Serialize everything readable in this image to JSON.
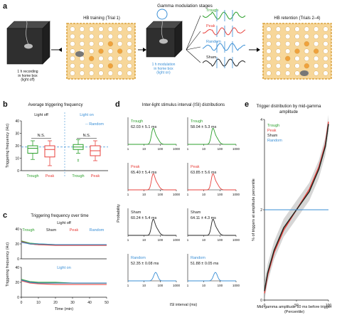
{
  "panel_a": {
    "letter": "a",
    "top_title": "Gamma modulation stages",
    "box1_caption": "1 h recording\nin home box\n(light off)",
    "box2_title": "HB training (Trial 1)",
    "box3_caption": "1 h modulation\nin home box\n(light on)",
    "box4_title": "HB retention (Trials 2–4)",
    "stage_labels": [
      "Trough",
      "Peak",
      "Random",
      "Sham"
    ]
  },
  "colors": {
    "trough": "#2ca02c",
    "peak": "#e8413c",
    "sham": "#222222",
    "random": "#3a8fd6",
    "maze_bg": "#f7d79a",
    "maze_border": "#d9a13a",
    "hole_orange": "#f0a23c"
  },
  "chart_data": [
    {
      "panel": "b",
      "type": "box",
      "title": "Average triggering frequency",
      "ylabel": "Triggering frequency (Hz)",
      "ylim": [
        0,
        40
      ],
      "yticks": [
        0,
        10,
        20,
        30,
        40
      ],
      "groups": [
        {
          "condition": "Light off",
          "categories": [
            "Trough",
            "Peak"
          ],
          "annotation": "N.S.",
          "boxes": [
            {
              "min": 9,
              "q1": 14,
              "median": 18,
              "q3": 20,
              "max": 24
            },
            {
              "min": 4,
              "q1": 11,
              "median": 17,
              "q3": 20,
              "max": 24
            }
          ]
        },
        {
          "condition": "Light on",
          "categories": [
            "Trough",
            "Peak"
          ],
          "annotation": "N.S.",
          "boxes": [
            {
              "min": 14,
              "q1": 17,
              "median": 19,
              "q3": 21,
              "max": 25,
              "outliers": [
                8,
                9
              ]
            },
            {
              "min": 8,
              "q1": 12,
              "median": 16,
              "q3": 20,
              "max": 24
            }
          ]
        }
      ],
      "reference": {
        "name": "Random",
        "value": 19
      }
    },
    {
      "panel": "c",
      "type": "line",
      "title": "Triggering frequency over time",
      "xlabel": "Time (min)",
      "ylabel": "Triggering frequency (Hz)",
      "xlim": [
        0,
        50
      ],
      "ylim": [
        0,
        40
      ],
      "xticks": [
        0,
        10,
        20,
        30,
        40,
        50
      ],
      "yticks": [
        0,
        20,
        40
      ],
      "legend": [
        "Trough",
        "Sham",
        "Peak",
        "Random"
      ],
      "subplots": [
        {
          "label": "Light off",
          "series": [
            {
              "name": "Trough",
              "x": [
                0,
                5,
                10,
                20,
                30,
                40,
                50
              ],
              "y": [
                24,
                21,
                20,
                19,
                19,
                19,
                19
              ]
            },
            {
              "name": "Sham",
              "x": [
                0,
                5,
                10,
                20,
                30,
                40,
                50
              ],
              "y": [
                23,
                20,
                19,
                19,
                19,
                19,
                19
              ]
            },
            {
              "name": "Peak",
              "x": [
                0,
                5,
                10,
                20,
                30,
                40,
                50
              ],
              "y": [
                23,
                20,
                19,
                18,
                18,
                18,
                18
              ]
            },
            {
              "name": "Random",
              "x": [
                0,
                5,
                10,
                20,
                30,
                40,
                50
              ],
              "y": [
                22,
                20,
                20,
                19,
                19,
                19,
                19
              ]
            }
          ]
        },
        {
          "label": "Light on",
          "series": [
            {
              "name": "Trough",
              "x": [
                0,
                5,
                10,
                20,
                30,
                40,
                50
              ],
              "y": [
                24,
                21,
                20,
                20,
                19,
                19,
                19
              ]
            },
            {
              "name": "Sham",
              "x": [
                0,
                5,
                10,
                20,
                30,
                40,
                50
              ],
              "y": [
                23,
                20,
                19,
                19,
                19,
                19,
                19
              ]
            },
            {
              "name": "Peak",
              "x": [
                0,
                5,
                10,
                20,
                30,
                40,
                50
              ],
              "y": [
                22,
                19,
                18,
                17,
                17,
                17,
                17
              ]
            },
            {
              "name": "Random",
              "x": [
                0,
                5,
                10,
                20,
                30,
                40,
                50
              ],
              "y": [
                23,
                20,
                19,
                19,
                19,
                19,
                19
              ]
            }
          ]
        }
      ]
    },
    {
      "panel": "d",
      "type": "line",
      "title": "Inter-light stimulus interval (ISI) distributions",
      "xlabel": "ISI interval (ms)",
      "ylabel": "Probability",
      "xscale": "log",
      "xlim": [
        1,
        1000
      ],
      "xticks": [
        1,
        10,
        100,
        1000
      ],
      "columns": [
        "Light off",
        "Light on"
      ],
      "rows": [
        {
          "name": "Trough",
          "stats": [
            "62.03 ± 5.1 ms",
            "58.04 ± 5.3 ms"
          ]
        },
        {
          "name": "Peak",
          "stats": [
            "65.40 ± 5.4 ms",
            "63.85 ± 5.6 ms"
          ]
        },
        {
          "name": "Sham",
          "stats": [
            "60.24 ± 5.4 ms",
            "64.11 ± 4.3 ms"
          ]
        },
        {
          "name": "Random",
          "stats": [
            "52.35 ± 0.08 ms",
            "51.88 ± 0.05 ms"
          ]
        }
      ]
    },
    {
      "panel": "e",
      "type": "line",
      "title": "Trigger distribution by mid-gamma amplitude",
      "xlabel": "Mid-gamma amplitude 10 ms before trigger (Percentile)",
      "ylabel": "% of triggers at amplitude percentile",
      "xlim": [
        0,
        100
      ],
      "ylim": [
        0,
        4
      ],
      "xticks": [
        0,
        50,
        100
      ],
      "yticks": [
        0,
        2,
        4
      ],
      "legend": [
        "Trough",
        "Peak",
        "Sham",
        "Random"
      ],
      "series": [
        {
          "name": "Trough",
          "x": [
            0,
            5,
            15,
            30,
            50,
            70,
            85,
            95,
            100
          ],
          "y": [
            0.2,
            0.6,
            1.1,
            1.6,
            2.0,
            2.4,
            2.9,
            3.4,
            3.9
          ]
        },
        {
          "name": "Peak",
          "x": [
            0,
            5,
            15,
            30,
            50,
            70,
            85,
            95,
            100
          ],
          "y": [
            0.15,
            0.55,
            1.05,
            1.55,
            2.0,
            2.45,
            2.95,
            3.45,
            3.95
          ]
        },
        {
          "name": "Sham",
          "x": [
            0,
            5,
            15,
            30,
            50,
            70,
            85,
            95,
            100
          ],
          "y": [
            0.2,
            0.6,
            1.1,
            1.6,
            2.0,
            2.4,
            2.9,
            3.4,
            3.9
          ]
        },
        {
          "name": "Random",
          "x": [
            0,
            25,
            50,
            75,
            100
          ],
          "y": [
            2.0,
            2.0,
            2.0,
            2.0,
            2.0
          ]
        }
      ]
    }
  ],
  "panel_letters": [
    "a",
    "b",
    "c",
    "d",
    "e"
  ]
}
